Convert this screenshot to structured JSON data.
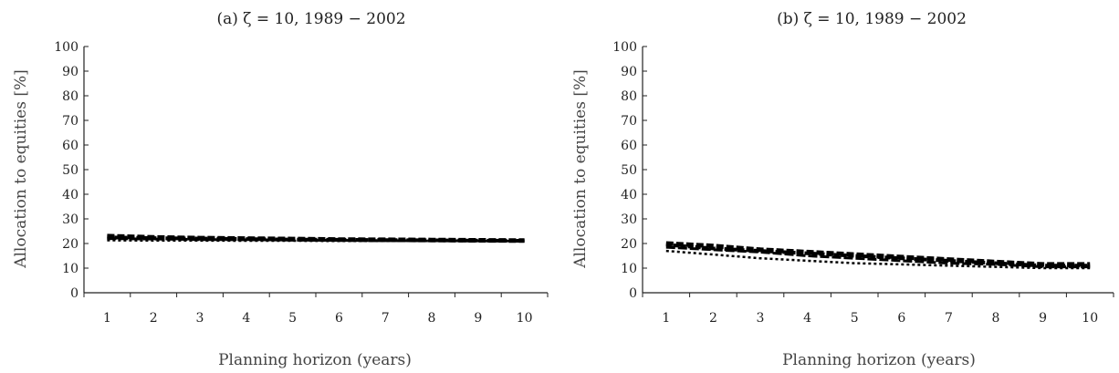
{
  "chart_data": [
    {
      "type": "line",
      "title": "(a) ζ = 10, 1989 − 2002",
      "xlabel": "Planning horizon (years)",
      "ylabel": "Allocation to equities [%]",
      "x": [
        1,
        2,
        3,
        4,
        5,
        6,
        7,
        8,
        9,
        10
      ],
      "x_ticks": [
        "1",
        "2",
        "3",
        "4",
        "5",
        "6",
        "7",
        "8",
        "9",
        "10"
      ],
      "y_ticks": [
        "0",
        "10",
        "20",
        "30",
        "40",
        "50",
        "60",
        "70",
        "80",
        "90",
        "100"
      ],
      "xlim": [
        0.5,
        10.5
      ],
      "ylim": [
        0,
        100
      ],
      "series": [
        {
          "values": [
            23.0,
            22.5,
            22.2,
            22.0,
            21.8,
            21.6,
            21.5,
            21.4,
            21.3,
            21.2
          ],
          "dash": "8 3",
          "width": 5
        },
        {
          "values": [
            22.5,
            22.2,
            22.0,
            21.8,
            21.6,
            21.5,
            21.4,
            21.3,
            21.2,
            21.1
          ],
          "dash": "6 2",
          "width": 4
        },
        {
          "values": [
            22.0,
            21.8,
            21.6,
            21.5,
            21.4,
            21.3,
            21.2,
            21.1,
            21.1,
            21.0
          ],
          "dash": "10 3",
          "width": 3
        },
        {
          "values": [
            21.3,
            21.2,
            21.2,
            21.1,
            21.1,
            21.0,
            21.0,
            21.0,
            21.0,
            21.0
          ],
          "dash": "3 3",
          "width": 2.5
        }
      ],
      "grid": false,
      "legend": "none"
    },
    {
      "type": "line",
      "title": "(b) ζ = 10, 1989 − 2002",
      "xlabel": "Planning horizon (years)",
      "ylabel": "Allocation to equities [%]",
      "x": [
        1,
        2,
        3,
        4,
        5,
        6,
        7,
        8,
        9,
        10
      ],
      "x_ticks": [
        "1",
        "2",
        "3",
        "4",
        "5",
        "6",
        "7",
        "8",
        "9",
        "10"
      ],
      "y_ticks": [
        "0",
        "10",
        "20",
        "30",
        "40",
        "50",
        "60",
        "70",
        "80",
        "90",
        "100"
      ],
      "xlim": [
        0.5,
        10.5
      ],
      "ylim": [
        0,
        100
      ],
      "series": [
        {
          "values": [
            20.0,
            19.0,
            17.5,
            16.5,
            15.5,
            14.5,
            13.5,
            12.5,
            11.5,
            11.5
          ],
          "dash": "8 3",
          "width": 5
        },
        {
          "values": [
            19.5,
            18.0,
            17.0,
            16.0,
            15.0,
            14.0,
            13.0,
            12.0,
            11.0,
            11.0
          ],
          "dash": "6 2",
          "width": 4
        },
        {
          "values": [
            18.5,
            17.5,
            16.5,
            15.0,
            14.0,
            13.0,
            12.0,
            11.5,
            10.5,
            10.5
          ],
          "dash": "10 3",
          "width": 3
        },
        {
          "values": [
            17.0,
            15.5,
            14.0,
            13.0,
            12.0,
            11.5,
            11.0,
            10.5,
            10.0,
            10.0
          ],
          "dash": "3 3",
          "width": 2.5
        }
      ],
      "grid": false,
      "legend": "none"
    }
  ]
}
